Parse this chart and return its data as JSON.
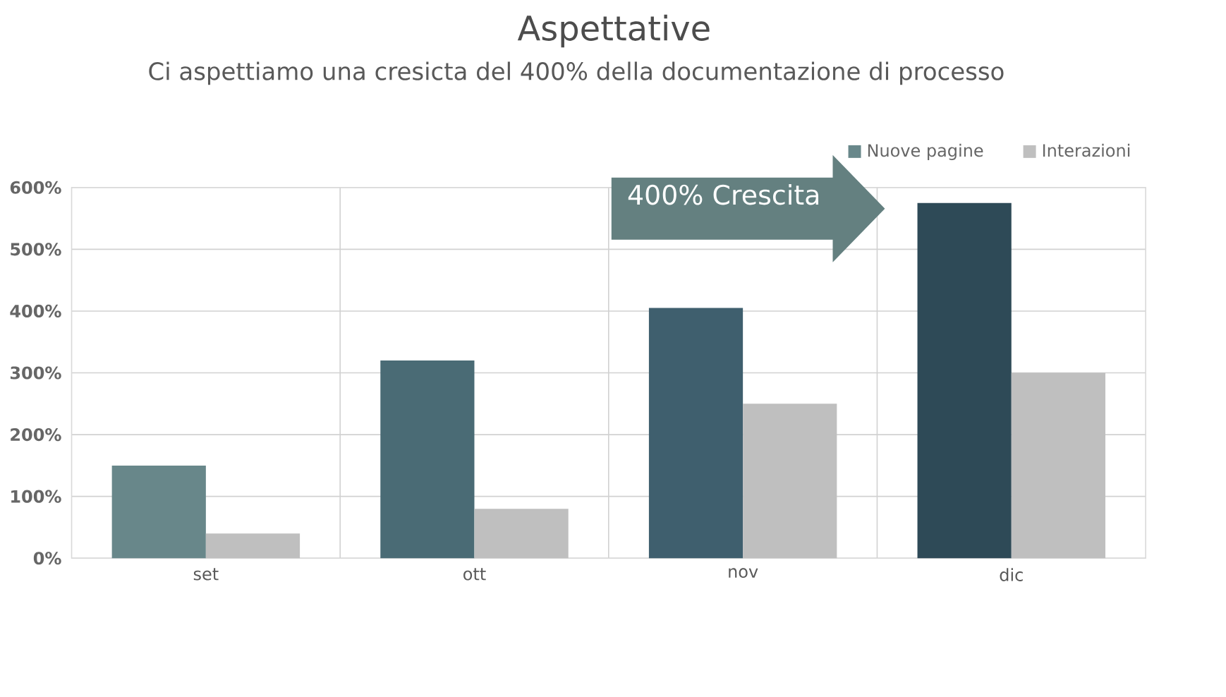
{
  "chart_data": {
    "type": "bar",
    "title": "Aspettative",
    "subtitle": "Ci aspettiamo una cresicta del 400% della documentazione di processo",
    "categories": [
      "set",
      "ott",
      "nov",
      "dic"
    ],
    "series": [
      {
        "name": "Nuove pagine",
        "color": "#68878a",
        "colors": [
          "#68878a",
          "#4a6b75",
          "#3f5f6e",
          "#2e4a57"
        ],
        "values": [
          150,
          320,
          405,
          575
        ]
      },
      {
        "name": "Interazioni",
        "color": "#bfbfbf",
        "values": [
          40,
          80,
          250,
          300
        ]
      }
    ],
    "ylim": [
      0,
      600
    ],
    "yticks": [
      {
        "value": 0,
        "label": "0%"
      },
      {
        "value": 100,
        "label": "100%"
      },
      {
        "value": 200,
        "label": "200%"
      },
      {
        "value": 300,
        "label": "300%"
      },
      {
        "value": 400,
        "label": "400%"
      },
      {
        "value": 500,
        "label": "500%"
      },
      {
        "value": 600,
        "label": "600%"
      }
    ],
    "grid": true,
    "legend": "top right",
    "annotations": [
      "400% Crescita"
    ]
  }
}
